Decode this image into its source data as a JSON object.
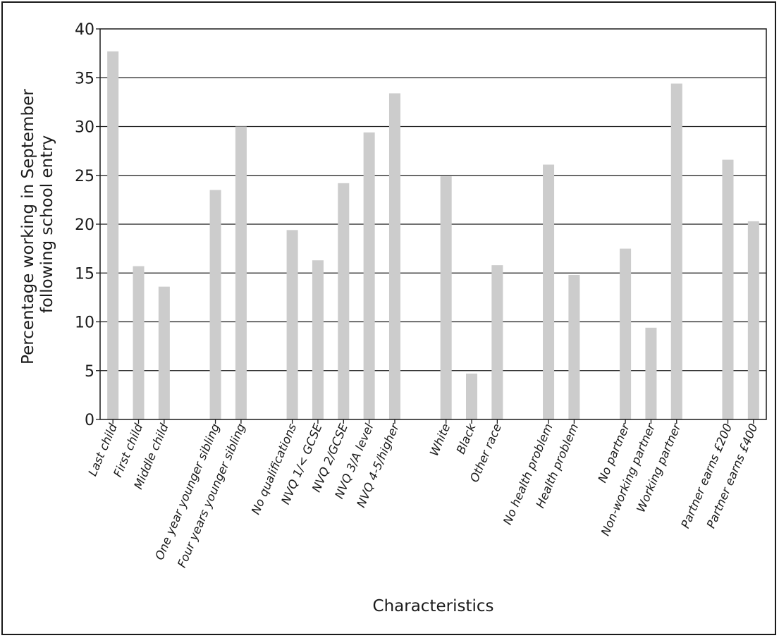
{
  "chart_data": {
    "type": "bar",
    "title": "",
    "xlabel": "Characteristics",
    "ylabel_lines": [
      "Percentage working in September",
      "following school entry"
    ],
    "ylim": [
      0,
      40
    ],
    "yticks": [
      0,
      5,
      10,
      15,
      20,
      25,
      30,
      35,
      40
    ],
    "grid": true,
    "bar_color": "#cccccc",
    "groups": [
      {
        "categories": [
          "Last child",
          "First child",
          "Middle child"
        ],
        "values": [
          37.7,
          15.7,
          13.6
        ]
      },
      {
        "categories": [
          "One year younger sibling",
          "Four years younger sibling"
        ],
        "values": [
          23.5,
          30.0
        ]
      },
      {
        "categories": [
          "No qualifications",
          "NVQ 1/< GCSE",
          "NVQ 2/GCSE",
          "NVQ 3/A level",
          "NVQ 4-5/higher"
        ],
        "values": [
          19.4,
          16.3,
          24.2,
          29.4,
          33.4
        ]
      },
      {
        "categories": [
          "White",
          "Black",
          "Other race"
        ],
        "values": [
          24.9,
          4.7,
          15.8
        ]
      },
      {
        "categories": [
          "No health problem",
          "Health problem"
        ],
        "values": [
          26.1,
          14.8
        ]
      },
      {
        "categories": [
          "No partner",
          "Non-working partner",
          "Working partner"
        ],
        "values": [
          17.5,
          9.4,
          34.4
        ]
      },
      {
        "categories": [
          "Partner earns £200",
          "Partner earns £400"
        ],
        "values": [
          26.6,
          20.3
        ]
      }
    ]
  }
}
